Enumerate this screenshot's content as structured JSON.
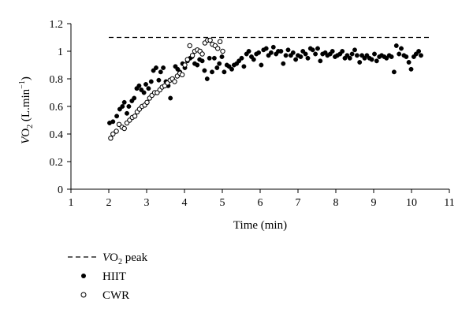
{
  "chart_data": {
    "type": "scatter",
    "xlabel": "Time (min)",
    "ylabel": {
      "italic": "V",
      "base": "O",
      "sub": "2",
      "rest": " (L.min",
      "sup": "−1",
      "close": ")"
    },
    "xlim": [
      1,
      11
    ],
    "ylim": [
      0,
      1.2
    ],
    "xticks": [
      "1",
      "2",
      "3",
      "4",
      "5",
      "6",
      "7",
      "8",
      "9",
      "10",
      "11"
    ],
    "yticks": [
      "0",
      "0.2",
      "0.4",
      "0.6",
      "0.8",
      "1",
      "1.2"
    ],
    "grid": false,
    "legend_position": "bottom-left",
    "reference_line": {
      "name_italic": "V",
      "name_base": "O",
      "name_sub": "2",
      "name_rest": " peak",
      "y": 1.1,
      "x": [
        2,
        10.5
      ],
      "style": "dashed"
    },
    "series": [
      {
        "name": "HIIT",
        "marker": "filled-circle",
        "x": [
          2.02,
          2.11,
          2.21,
          2.29,
          2.36,
          2.41,
          2.48,
          2.53,
          2.61,
          2.67,
          2.74,
          2.8,
          2.86,
          2.93,
          2.98,
          3.05,
          3.12,
          3.18,
          3.25,
          3.32,
          3.37,
          3.44,
          3.51,
          3.57,
          3.63,
          3.69,
          3.76,
          3.82,
          3.88,
          3.95,
          4.01,
          4.08,
          4.15,
          4.2,
          4.27,
          4.34,
          4.4,
          4.47,
          4.53,
          4.6,
          4.66,
          4.73,
          4.79,
          4.86,
          4.92,
          4.99,
          5.05,
          5.12,
          5.18,
          5.25,
          5.31,
          5.38,
          5.44,
          5.51,
          5.57,
          5.64,
          5.7,
          5.77,
          5.83,
          5.9,
          5.96,
          6.03,
          6.09,
          6.16,
          6.22,
          6.29,
          6.35,
          6.42,
          6.48,
          6.55,
          6.61,
          6.68,
          6.74,
          6.81,
          6.87,
          6.94,
          7.0,
          7.07,
          7.13,
          7.2,
          7.26,
          7.33,
          7.39,
          7.46,
          7.52,
          7.59,
          7.65,
          7.72,
          7.78,
          7.85,
          7.91,
          7.98,
          8.04,
          8.11,
          8.17,
          8.24,
          8.3,
          8.37,
          8.43,
          8.5,
          8.56,
          8.63,
          8.69,
          8.76,
          8.82,
          8.89,
          8.95,
          9.02,
          9.08,
          9.15,
          9.21,
          9.28,
          9.34,
          9.41,
          9.47,
          9.54,
          9.6,
          9.67,
          9.73,
          9.8,
          9.86,
          9.93,
          9.99,
          10.06,
          10.12,
          10.19,
          10.25
        ],
        "y": [
          0.48,
          0.49,
          0.53,
          0.58,
          0.6,
          0.63,
          0.55,
          0.6,
          0.64,
          0.66,
          0.73,
          0.75,
          0.72,
          0.7,
          0.76,
          0.73,
          0.78,
          0.86,
          0.88,
          0.79,
          0.85,
          0.88,
          0.78,
          0.75,
          0.66,
          0.8,
          0.89,
          0.87,
          0.85,
          0.91,
          0.88,
          0.93,
          0.95,
          0.96,
          0.91,
          0.9,
          0.94,
          0.93,
          0.86,
          0.8,
          0.95,
          0.85,
          0.95,
          0.88,
          0.91,
          0.96,
          0.85,
          0.9,
          0.89,
          0.87,
          0.9,
          0.91,
          0.93,
          0.95,
          0.89,
          0.98,
          1.0,
          0.96,
          0.94,
          0.98,
          0.99,
          0.9,
          1.01,
          1.02,
          0.97,
          0.99,
          1.03,
          0.98,
          1.0,
          1.0,
          0.91,
          0.97,
          1.01,
          0.97,
          0.99,
          0.94,
          0.97,
          0.96,
          1.0,
          0.98,
          0.95,
          1.02,
          1.01,
          0.98,
          1.02,
          0.93,
          0.98,
          0.99,
          0.97,
          0.98,
          1.0,
          0.96,
          0.97,
          0.98,
          1.0,
          0.95,
          0.97,
          0.95,
          0.98,
          1.01,
          0.97,
          0.92,
          0.97,
          0.95,
          0.97,
          0.95,
          0.94,
          0.98,
          0.93,
          0.96,
          0.97,
          0.96,
          0.95,
          0.97,
          0.96,
          0.85,
          1.04,
          0.98,
          1.02,
          0.97,
          0.96,
          0.92,
          0.87,
          0.96,
          0.98,
          1.0,
          0.97
        ],
        "color": "#000000"
      },
      {
        "name": "CWR",
        "marker": "open-circle",
        "x": [
          2.05,
          2.11,
          2.2,
          2.27,
          2.35,
          2.41,
          2.48,
          2.55,
          2.62,
          2.69,
          2.75,
          2.81,
          2.88,
          2.95,
          3.01,
          3.08,
          3.14,
          3.21,
          3.28,
          3.35,
          3.41,
          3.48,
          3.55,
          3.62,
          3.68,
          3.74,
          3.81,
          3.88,
          3.94,
          4.01,
          4.08,
          4.14,
          4.21,
          4.27,
          4.34,
          4.41,
          4.47,
          4.54,
          4.61,
          4.68,
          4.74,
          4.81,
          4.88,
          4.94,
          5.01
        ],
        "y": [
          0.37,
          0.4,
          0.42,
          0.47,
          0.45,
          0.44,
          0.48,
          0.5,
          0.52,
          0.53,
          0.56,
          0.58,
          0.6,
          0.61,
          0.63,
          0.66,
          0.68,
          0.7,
          0.7,
          0.72,
          0.74,
          0.75,
          0.77,
          0.79,
          0.8,
          0.78,
          0.82,
          0.84,
          0.83,
          0.9,
          0.94,
          1.04,
          0.97,
          1.0,
          1.01,
          1.0,
          0.98,
          1.06,
          1.08,
          1.08,
          1.05,
          1.04,
          1.02,
          1.07,
          1.0
        ],
        "color": "#000000"
      }
    ]
  }
}
